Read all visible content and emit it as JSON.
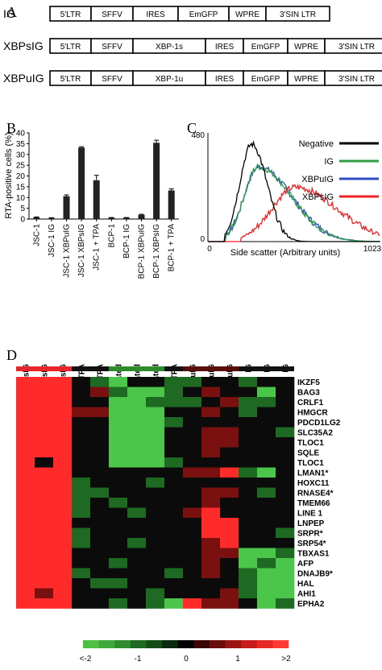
{
  "panel_a": {
    "label": "A",
    "constructs": [
      {
        "name": "IG",
        "segments": [
          "5'LTR",
          "SFFV",
          "IRES",
          "EmGFP",
          "WPRE",
          "3'SIN LTR"
        ]
      },
      {
        "name": "XBPsIG",
        "segments": [
          "5'LTR",
          "SFFV",
          "XBP-1s",
          "IRES",
          "EmGFP",
          "WPRE",
          "3'SIN LTR"
        ]
      },
      {
        "name": "XBPuIG",
        "segments": [
          "5'LTR",
          "SFFV",
          "XBP-1u",
          "IRES",
          "EmGFP",
          "WPRE",
          "3'SIN LTR"
        ]
      }
    ]
  },
  "panel_b": {
    "label": "B",
    "chart_data": {
      "type": "bar",
      "ylabel": "RTA-positive cells (%)",
      "ylim": [
        0,
        40
      ],
      "yticks": [
        "0",
        "5",
        "10",
        "15",
        "20",
        "25",
        "30",
        "35",
        "40"
      ],
      "categories": [
        "JSC-1",
        "JSC-1 IG",
        "JSC-1 XBPuIG",
        "JSC-1 XBPsIG",
        "JSC-1 + TPA",
        "BCP-1",
        "BCP-1 IG",
        "BCP-1 XBPuIG",
        "BCP-1 XBPsIG",
        "BCP-1 + TPA"
      ],
      "values": [
        0.8,
        0.5,
        10.6,
        33.2,
        18.0,
        0.6,
        0.6,
        2.0,
        35.4,
        13.3
      ],
      "errors": [
        0.2,
        0.1,
        0.6,
        0.4,
        2.3,
        0.1,
        0.1,
        0.2,
        1.2,
        0.7
      ],
      "bar_color": "#222222"
    }
  },
  "panel_c": {
    "label": "C",
    "chart_data": {
      "type": "line",
      "xlabel": "Side scatter (Arbitrary units)",
      "xticks": [
        "0",
        "1023"
      ],
      "yticks": [
        "0",
        "480"
      ],
      "xlim": [
        0,
        1023
      ],
      "ylim": [
        0,
        480
      ],
      "series": [
        {
          "name": "Negative",
          "color": "#000000",
          "peak_x": 260,
          "peak_y": 430,
          "width_left": 95,
          "width_right": 120
        },
        {
          "name": "IG",
          "color": "#2ea043",
          "peak_x": 300,
          "peak_y": 330,
          "width_left": 115,
          "width_right": 260
        },
        {
          "name": "XBPuIG",
          "color": "#3049c8",
          "peak_x": 300,
          "peak_y": 330,
          "width_left": 115,
          "width_right": 265
        },
        {
          "name": "XBPsIG",
          "color": "#ee2222",
          "peak_x": 520,
          "peak_y": 240,
          "width_left": 190,
          "width_right": 330
        }
      ]
    }
  },
  "panel_d": {
    "label": "D",
    "columns": [
      "XBPsIG",
      "XBPsIG",
      "XBPsIG",
      "TPA",
      "TPA",
      "Untreated",
      "Untreated",
      "Untreated",
      "TPA",
      "XBPuIG",
      "XBPuIG",
      "XBPuIG",
      "IG",
      "IG",
      "IG"
    ],
    "column_bar_colors": [
      "#e8262a",
      "#e8262a",
      "#e8262a",
      "#111111",
      "#111111",
      "#2f8c2a",
      "#2f8c2a",
      "#2f8c2a",
      "#111111",
      "#5a0d0d",
      "#5a0d0d",
      "#5a0d0d",
      "#111111",
      "#111111",
      "#111111"
    ],
    "genes": [
      "IKZF5",
      "BAG3",
      "CRLF1",
      "HMGCR",
      "PDCD1LG2",
      "SLC35A2",
      "TLOC1",
      "SQLE",
      "TLOC1",
      "LMAN1*",
      "HOXC11",
      "RNASE4*",
      "TMEM66",
      "LINE 1",
      "LNPEP",
      "SRPR*",
      "SRP54*",
      "TBXAS1",
      "AFP",
      "DNAJB9*",
      "HAL",
      "AHI1",
      "EPHA2"
    ],
    "matrix": [
      [
        2,
        2,
        2,
        0,
        -1,
        -2,
        0,
        0,
        -1,
        -1,
        0,
        0,
        -1,
        0,
        0
      ],
      [
        2,
        2,
        2,
        0,
        1,
        -1,
        -2,
        -2,
        -1,
        0,
        1,
        0,
        0,
        -2,
        0
      ],
      [
        2,
        2,
        2,
        0,
        0,
        -2,
        -2,
        -1,
        -1,
        -1,
        0,
        1,
        -1,
        -1,
        0
      ],
      [
        2,
        2,
        2,
        1,
        1,
        -2,
        -2,
        -2,
        0,
        0,
        1,
        0,
        -1,
        0,
        0
      ],
      [
        2,
        2,
        2,
        0,
        0,
        -2,
        -2,
        -2,
        -1,
        0,
        0,
        0,
        0,
        0,
        0
      ],
      [
        2,
        2,
        2,
        0,
        0,
        -2,
        -2,
        -2,
        0,
        0,
        1,
        1,
        0,
        0,
        -1
      ],
      [
        2,
        2,
        2,
        0,
        0,
        -2,
        -2,
        -2,
        0,
        0,
        1,
        1,
        0,
        0,
        0
      ],
      [
        2,
        2,
        2,
        0,
        0,
        -2,
        -2,
        -2,
        0,
        0,
        1,
        0,
        0,
        0,
        0
      ],
      [
        2,
        0,
        2,
        0,
        0,
        -2,
        -2,
        -2,
        -1,
        0,
        0,
        0,
        0,
        0,
        0
      ],
      [
        2,
        2,
        2,
        0,
        0,
        0,
        0,
        0,
        0,
        1,
        1,
        2,
        -1,
        -2,
        0
      ],
      [
        2,
        2,
        2,
        -1,
        0,
        0,
        0,
        -1,
        0,
        0,
        0,
        0,
        0,
        0,
        0
      ],
      [
        2,
        2,
        2,
        -1,
        -1,
        0,
        0,
        0,
        0,
        0,
        1,
        1,
        0,
        -1,
        0
      ],
      [
        2,
        2,
        2,
        -1,
        0,
        -1,
        0,
        0,
        0,
        0,
        1,
        0,
        0,
        0,
        0
      ],
      [
        2,
        2,
        2,
        -1,
        0,
        0,
        -1,
        0,
        0,
        1,
        2,
        0,
        0,
        0,
        0
      ],
      [
        2,
        2,
        2,
        0,
        0,
        0,
        0,
        0,
        0,
        0,
        2,
        2,
        0,
        0,
        0
      ],
      [
        2,
        2,
        2,
        -1,
        0,
        0,
        0,
        0,
        0,
        0,
        2,
        2,
        0,
        0,
        -1
      ],
      [
        2,
        2,
        2,
        -1,
        0,
        0,
        -1,
        0,
        0,
        0,
        1,
        2,
        0,
        0,
        0
      ],
      [
        2,
        2,
        2,
        0,
        0,
        0,
        0,
        0,
        0,
        0,
        1,
        1,
        -2,
        -2,
        -1
      ],
      [
        2,
        2,
        2,
        0,
        0,
        -1,
        0,
        0,
        0,
        0,
        1,
        0,
        -2,
        -1,
        -2
      ],
      [
        2,
        2,
        2,
        -1,
        0,
        0,
        0,
        0,
        -1,
        0,
        1,
        0,
        -1,
        -2,
        -2
      ],
      [
        2,
        2,
        2,
        0,
        -1,
        -1,
        0,
        0,
        0,
        0,
        0,
        0,
        -1,
        -2,
        -2
      ],
      [
        2,
        1,
        2,
        0,
        0,
        0,
        0,
        -1,
        0,
        0,
        0,
        1,
        -1,
        -2,
        -2
      ],
      [
        2,
        2,
        2,
        0,
        0,
        -1,
        0,
        -1,
        -2,
        2,
        1,
        1,
        0,
        -2,
        -1
      ]
    ],
    "scale_labels": [
      "<-2",
      "-1",
      "0",
      "1",
      ">2"
    ],
    "scale_colors": [
      "#4cc040",
      "#3fa93b",
      "#2e8b2e",
      "#1f6a22",
      "#144c18",
      "#0a2a0d",
      "#000000",
      "#3a0606",
      "#6a0d0c",
      "#9a1412",
      "#c61c1a",
      "#e52824",
      "#ff3a33"
    ]
  }
}
